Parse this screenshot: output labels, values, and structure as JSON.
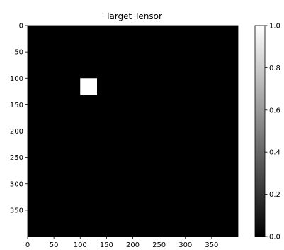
{
  "chart_data": {
    "type": "heatmap",
    "title": "Target Tensor",
    "xlabel": "",
    "ylabel": "",
    "image_size": [
      400,
      400
    ],
    "xlim": [
      0,
      400
    ],
    "ylim": [
      400,
      0
    ],
    "x_ticks": [
      0,
      50,
      100,
      150,
      200,
      250,
      300,
      350
    ],
    "y_ticks": [
      0,
      50,
      100,
      150,
      200,
      250,
      300,
      350
    ],
    "background_value": 0.0,
    "highlight_regions": [
      {
        "x0": 100,
        "x1": 132,
        "y0": 100,
        "y1": 132,
        "value": 1.0
      }
    ],
    "colormap": "gray",
    "colorbar": {
      "range": [
        0.0,
        1.0
      ],
      "ticks": [
        "0.0",
        "0.2",
        "0.4",
        "0.6",
        "0.8",
        "1.0"
      ]
    },
    "grid": false
  }
}
